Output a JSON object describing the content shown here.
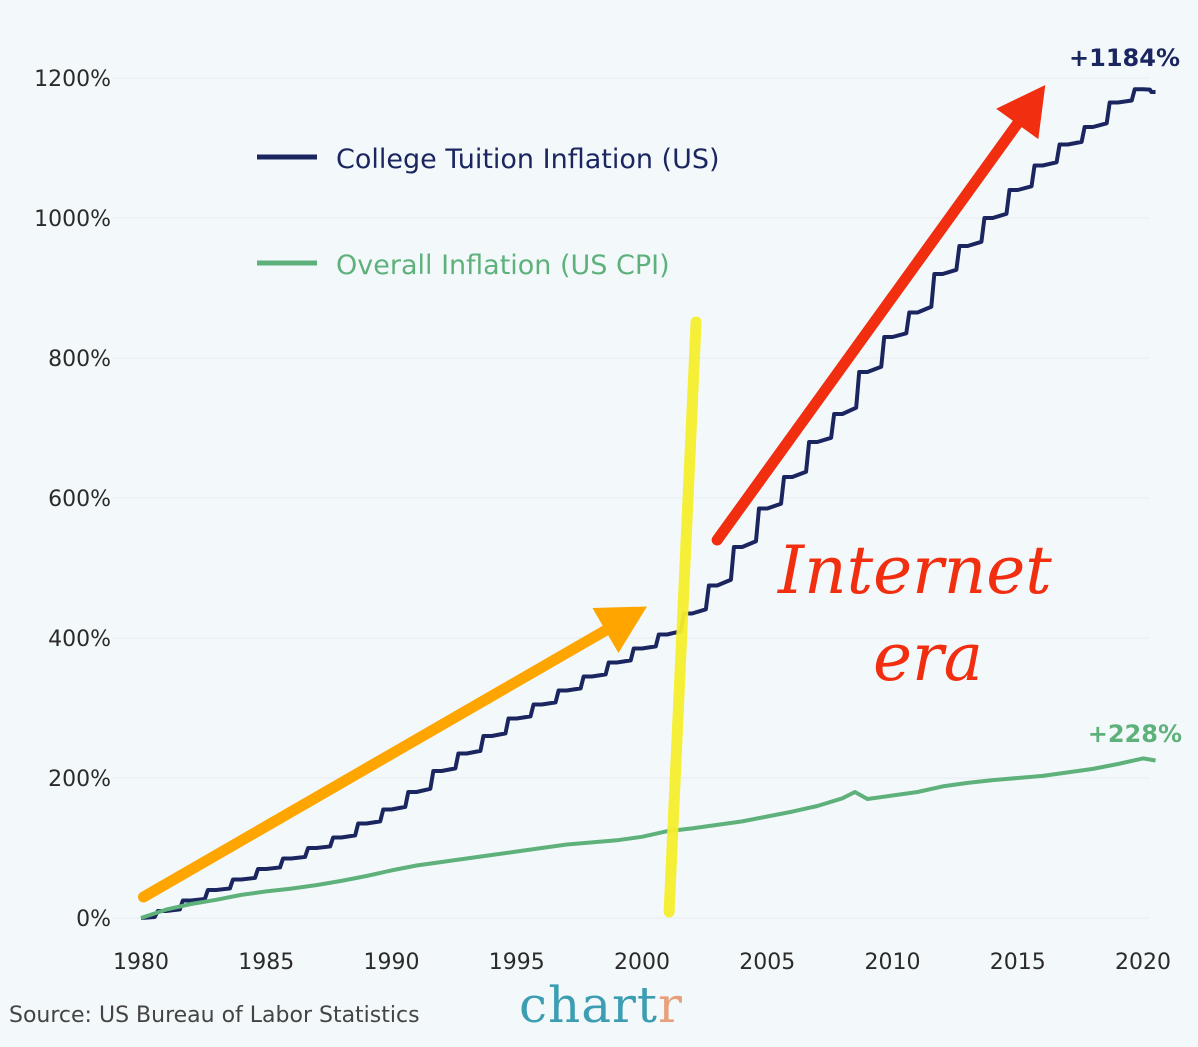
{
  "chart_data": {
    "type": "line",
    "title": "",
    "xlabel": "",
    "ylabel": "",
    "xlim": [
      1980,
      2020.5
    ],
    "ylim": [
      0,
      1200
    ],
    "grid": true,
    "x_ticks": [
      "1980",
      "1985",
      "1990",
      "1995",
      "2000",
      "2005",
      "2010",
      "2015",
      "2020"
    ],
    "y_ticks": [
      "0%",
      "200%",
      "400%",
      "600%",
      "800%",
      "1000%",
      "1200%"
    ],
    "series": [
      {
        "name": "College Tuition Inflation (US)",
        "color": "#1b2660",
        "end_label": "+1184%",
        "x": [
          1980,
          1981,
          1982,
          1983,
          1984,
          1985,
          1986,
          1987,
          1988,
          1989,
          1990,
          1991,
          1992,
          1993,
          1994,
          1995,
          1996,
          1997,
          1998,
          1999,
          2000,
          2001,
          2002,
          2003,
          2004,
          2005,
          2006,
          2007,
          2008,
          2009,
          2010,
          2011,
          2012,
          2013,
          2014,
          2015,
          2016,
          2017,
          2018,
          2019,
          2020,
          2020.5
        ],
        "y": [
          0,
          10,
          25,
          40,
          55,
          70,
          85,
          100,
          115,
          135,
          155,
          180,
          210,
          235,
          260,
          285,
          305,
          325,
          345,
          365,
          385,
          405,
          435,
          475,
          530,
          585,
          630,
          680,
          720,
          780,
          830,
          865,
          920,
          960,
          1000,
          1040,
          1075,
          1105,
          1130,
          1165,
          1184,
          1180
        ]
      },
      {
        "name": "Overall Inflation (US CPI)",
        "color": "#5fb17c",
        "end_label": "+228%",
        "x": [
          1980,
          1981,
          1982,
          1983,
          1984,
          1985,
          1986,
          1987,
          1988,
          1989,
          1990,
          1991,
          1992,
          1993,
          1994,
          1995,
          1996,
          1997,
          1998,
          1999,
          2000,
          2001,
          2002,
          2003,
          2004,
          2005,
          2006,
          2007,
          2008,
          2008.5,
          2009,
          2010,
          2011,
          2012,
          2013,
          2014,
          2015,
          2016,
          2017,
          2018,
          2019,
          2020,
          2020.5
        ],
        "y": [
          0,
          12,
          20,
          26,
          33,
          38,
          42,
          47,
          53,
          60,
          68,
          75,
          80,
          85,
          90,
          95,
          100,
          105,
          108,
          111,
          116,
          124,
          128,
          133,
          138,
          145,
          152,
          160,
          171,
          180,
          170,
          175,
          180,
          188,
          193,
          197,
          200,
          203,
          208,
          213,
          220,
          228,
          225
        ]
      }
    ],
    "annotations": [
      {
        "kind": "text",
        "text": "Internet",
        "color": "#f22e10"
      },
      {
        "kind": "text",
        "text": "era",
        "color": "#f22e10"
      },
      {
        "kind": "vline",
        "x": 2001.8,
        "color": "#f6ee2c"
      },
      {
        "kind": "arrow",
        "from": [
          1980.1,
          30
        ],
        "to": [
          2000.2,
          445
        ],
        "color": "#ffa500"
      },
      {
        "kind": "arrow",
        "from": [
          2003.0,
          540
        ],
        "to": [
          2016.1,
          1190
        ],
        "color": "#f22e10"
      }
    ]
  },
  "legend": {
    "tuition_label": "College Tuition Inflation (US)",
    "cpi_label": "Overall Inflation (US CPI)"
  },
  "footer": {
    "source": "Source: US Bureau of Labor Statistics",
    "brand_main": "chart",
    "brand_accent": "r"
  }
}
